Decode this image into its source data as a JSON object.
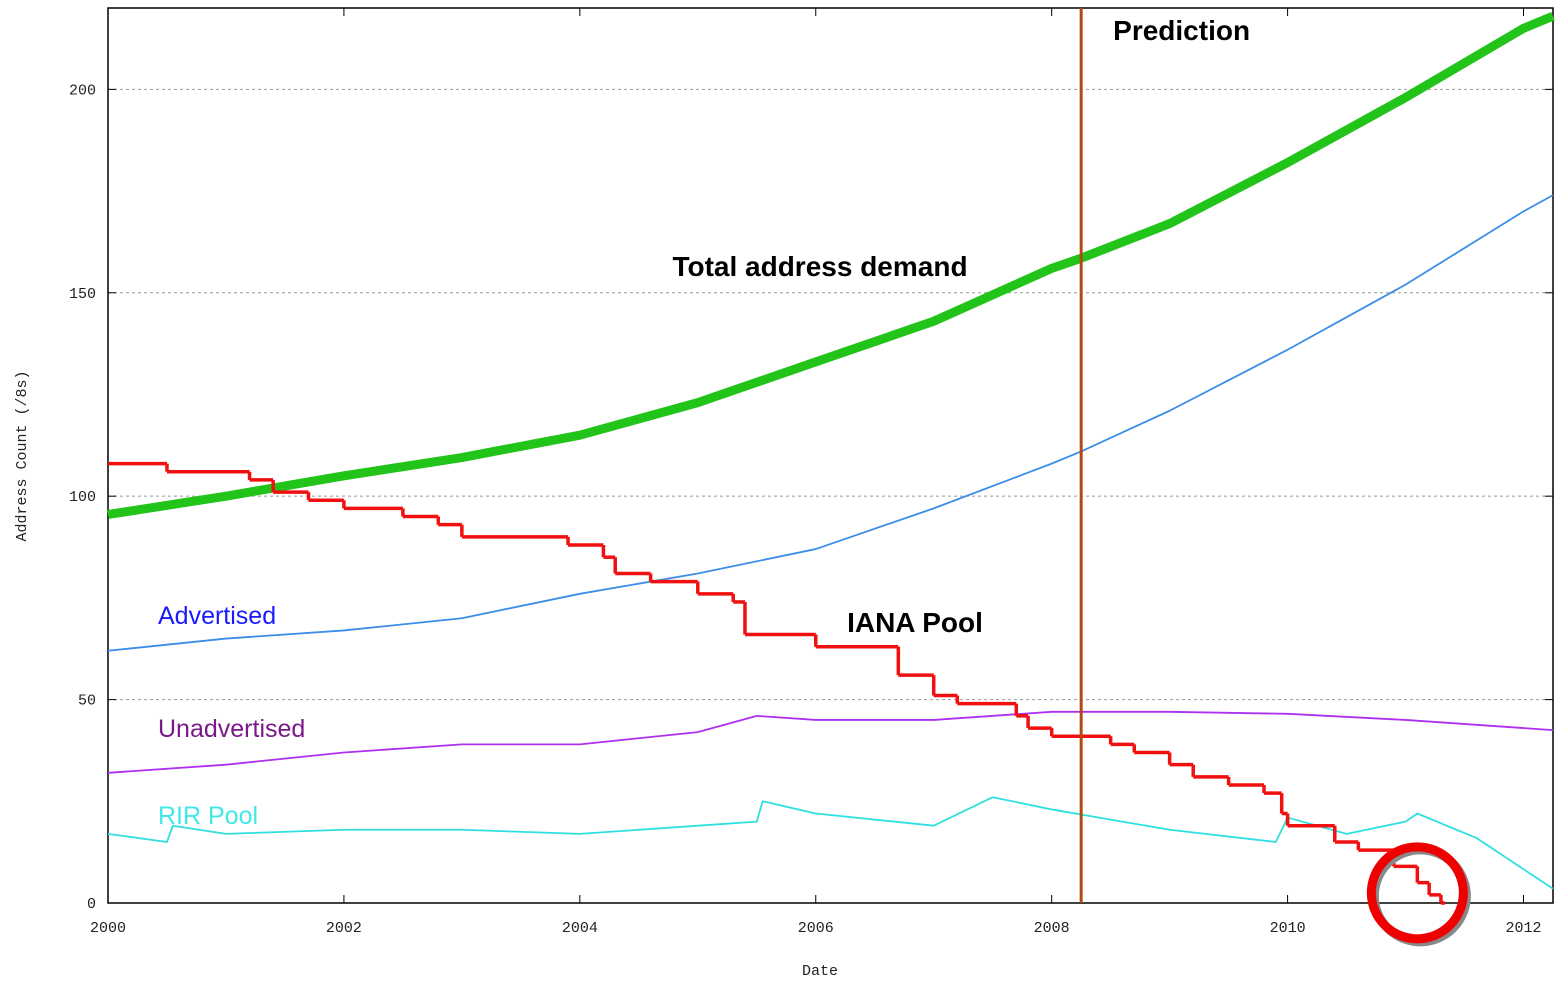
{
  "chart_data": {
    "type": "line",
    "x_label": "Date",
    "y_label": "Address Count (/8s)",
    "xlim": [
      2000,
      2012.25
    ],
    "ylim": [
      0,
      220
    ],
    "xticks": [
      2000,
      2002,
      2004,
      2006,
      2008,
      2010,
      2012
    ],
    "yticks": [
      0,
      50,
      100,
      150,
      200
    ],
    "grid": true,
    "series": [
      {
        "name": "Total address demand",
        "color": "#22c41a",
        "label_color": "#000000",
        "x": [
          2000,
          2001,
          2002,
          2003,
          2004,
          2005,
          2006,
          2007,
          2008,
          2008.25,
          2009,
          2010,
          2011,
          2012,
          2012.25
        ],
        "values": [
          95.5,
          100,
          105,
          109.5,
          115,
          123,
          133,
          143,
          156,
          158.5,
          167,
          182,
          198,
          215,
          218
        ]
      },
      {
        "name": "Advertised",
        "color": "#3b8ee8",
        "label_color": "#1a1aff",
        "x": [
          2000,
          2001,
          2002,
          2003,
          2004,
          2005,
          2006,
          2007,
          2008,
          2008.25,
          2009,
          2010,
          2011,
          2012,
          2012.25
        ],
        "values": [
          62,
          65,
          67,
          70,
          76,
          81,
          87,
          97,
          108,
          111,
          121,
          136,
          152,
          170,
          174
        ]
      },
      {
        "name": "Unadvertised",
        "color": "#b030f0",
        "label_color": "#7a1a8a",
        "x": [
          2000,
          2001,
          2002,
          2003,
          2004,
          2005,
          2005.5,
          2006,
          2007,
          2008,
          2009,
          2010,
          2011,
          2012,
          2012.25
        ],
        "values": [
          32,
          34,
          37,
          39,
          39,
          42,
          46,
          45,
          45,
          47,
          47,
          46.5,
          45,
          43,
          42.5
        ]
      },
      {
        "name": "RIR Pool",
        "color": "#30e0e0",
        "label_color": "#40e8e8",
        "x": [
          2000,
          2000.5,
          2000.55,
          2001,
          2002,
          2003,
          2004,
          2005,
          2005.5,
          2005.55,
          2006,
          2007,
          2007.5,
          2008,
          2009,
          2009.9,
          2010,
          2010.5,
          2011,
          2011.1,
          2011.6,
          2012.25
        ],
        "values": [
          17,
          15,
          19,
          17,
          18,
          18,
          17,
          19,
          20,
          25,
          22,
          19,
          26,
          23,
          18,
          15,
          21,
          17,
          20,
          22,
          16,
          3.5
        ]
      },
      {
        "name": "IANA Pool",
        "color": "#f01010",
        "label_color": "#000000",
        "step": true,
        "x": [
          2000,
          2000.5,
          2001.2,
          2001.4,
          2001.7,
          2002,
          2002.5,
          2002.8,
          2003,
          2003.9,
          2004.2,
          2004.3,
          2004.6,
          2005,
          2005.3,
          2005.4,
          2006,
          2006.7,
          2007,
          2007.2,
          2007.7,
          2007.8,
          2008,
          2008.5,
          2008.7,
          2009,
          2009.2,
          2009.5,
          2009.8,
          2009.95,
          2010,
          2010.4,
          2010.6,
          2010.9,
          2011.1,
          2011.2,
          2011.3
        ],
        "values": [
          108,
          106,
          104,
          101,
          99,
          97,
          95,
          93,
          90,
          88,
          85,
          81,
          79,
          76,
          74,
          66,
          63,
          56,
          51,
          49,
          46,
          43,
          41,
          39,
          37,
          34,
          31,
          29,
          27,
          22,
          19,
          15,
          13,
          9,
          5,
          2,
          0
        ]
      }
    ],
    "prediction": {
      "text": "Prediction",
      "x": 2008.25,
      "color": "#b04a10"
    },
    "highlight": {
      "x": 2011.1,
      "y": 2.5,
      "color": "#ee0000"
    }
  }
}
